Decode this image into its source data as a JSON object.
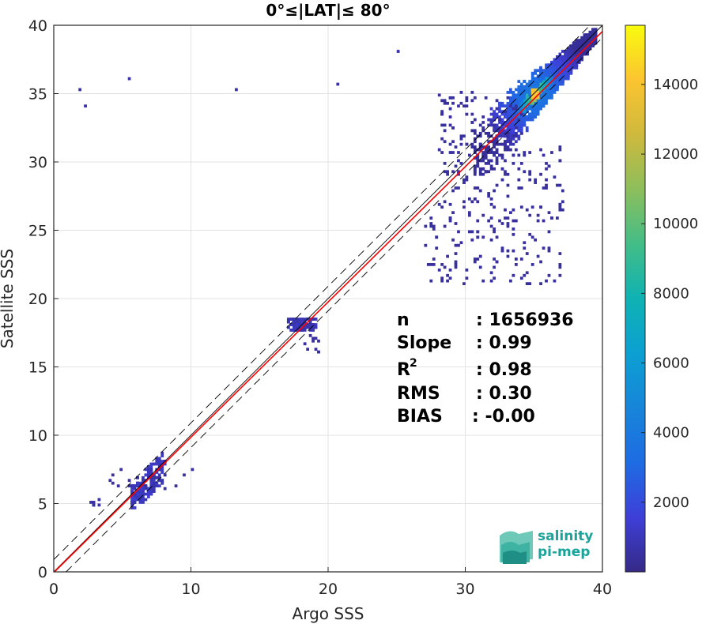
{
  "chart_data": {
    "type": "heatmap",
    "title": "0°≤|LAT|≤ 80°",
    "xlabel": "Argo SSS",
    "ylabel": "Satellite SSS",
    "xlim": [
      0,
      40
    ],
    "ylim": [
      0,
      40
    ],
    "x_ticks": [
      "0",
      "10",
      "20",
      "30",
      "40"
    ],
    "y_ticks": [
      "0",
      "5",
      "10",
      "15",
      "20",
      "25",
      "30",
      "35",
      "40"
    ],
    "grid": true,
    "colorbar": {
      "range": [
        0,
        15700
      ],
      "ticks": [
        "2000",
        "4000",
        "6000",
        "8000",
        "10000",
        "12000",
        "14000"
      ],
      "colormap": "parula"
    },
    "density_clusters": [
      {
        "x_range": [
          30,
          39
        ],
        "y_range": [
          27,
          39.5
        ],
        "peak_x": 35,
        "peak_y": 34.8,
        "peak_count": 15700
      },
      {
        "x_range": [
          17,
          19
        ],
        "y_range": [
          17.5,
          18.5
        ],
        "peak_count": 900
      },
      {
        "x_range": [
          5.5,
          8
        ],
        "y_range": [
          5,
          8.5
        ],
        "peak_count": 1200
      },
      {
        "x_range": [
          2.5,
          3.5
        ],
        "y_range": [
          4.8,
          5.2
        ],
        "peak_count": 300
      }
    ],
    "lines": [
      {
        "name": "1:1 line",
        "color": "#000000",
        "style": "solid"
      },
      {
        "name": "regression fit",
        "color": "#ff0000",
        "style": "solid",
        "slope": 0.99,
        "intercept": -0.05
      },
      {
        "name": "upper bound",
        "color": "#000000",
        "style": "dashed",
        "offset": 0.9
      },
      {
        "name": "lower bound",
        "color": "#000000",
        "style": "dashed",
        "offset": -0.9
      }
    ],
    "stats": [
      {
        "label": "n",
        "value": ": 1656936"
      },
      {
        "label": "Slope",
        "value": ": 0.99"
      },
      {
        "label": "R",
        "sup": "2",
        "value": ": 0.98"
      },
      {
        "label": "RMS",
        "value": ": 0.30"
      },
      {
        "label": "BIAS",
        "value": ": -0.00"
      }
    ]
  },
  "logo": {
    "line1": "salinity",
    "line2": "pi-mep"
  },
  "colors": {
    "low": "#3e26a8",
    "mid": "#23b7b7",
    "high": "#f9fb15",
    "fit_line": "#ff0000",
    "logo": "#1aa39a"
  }
}
